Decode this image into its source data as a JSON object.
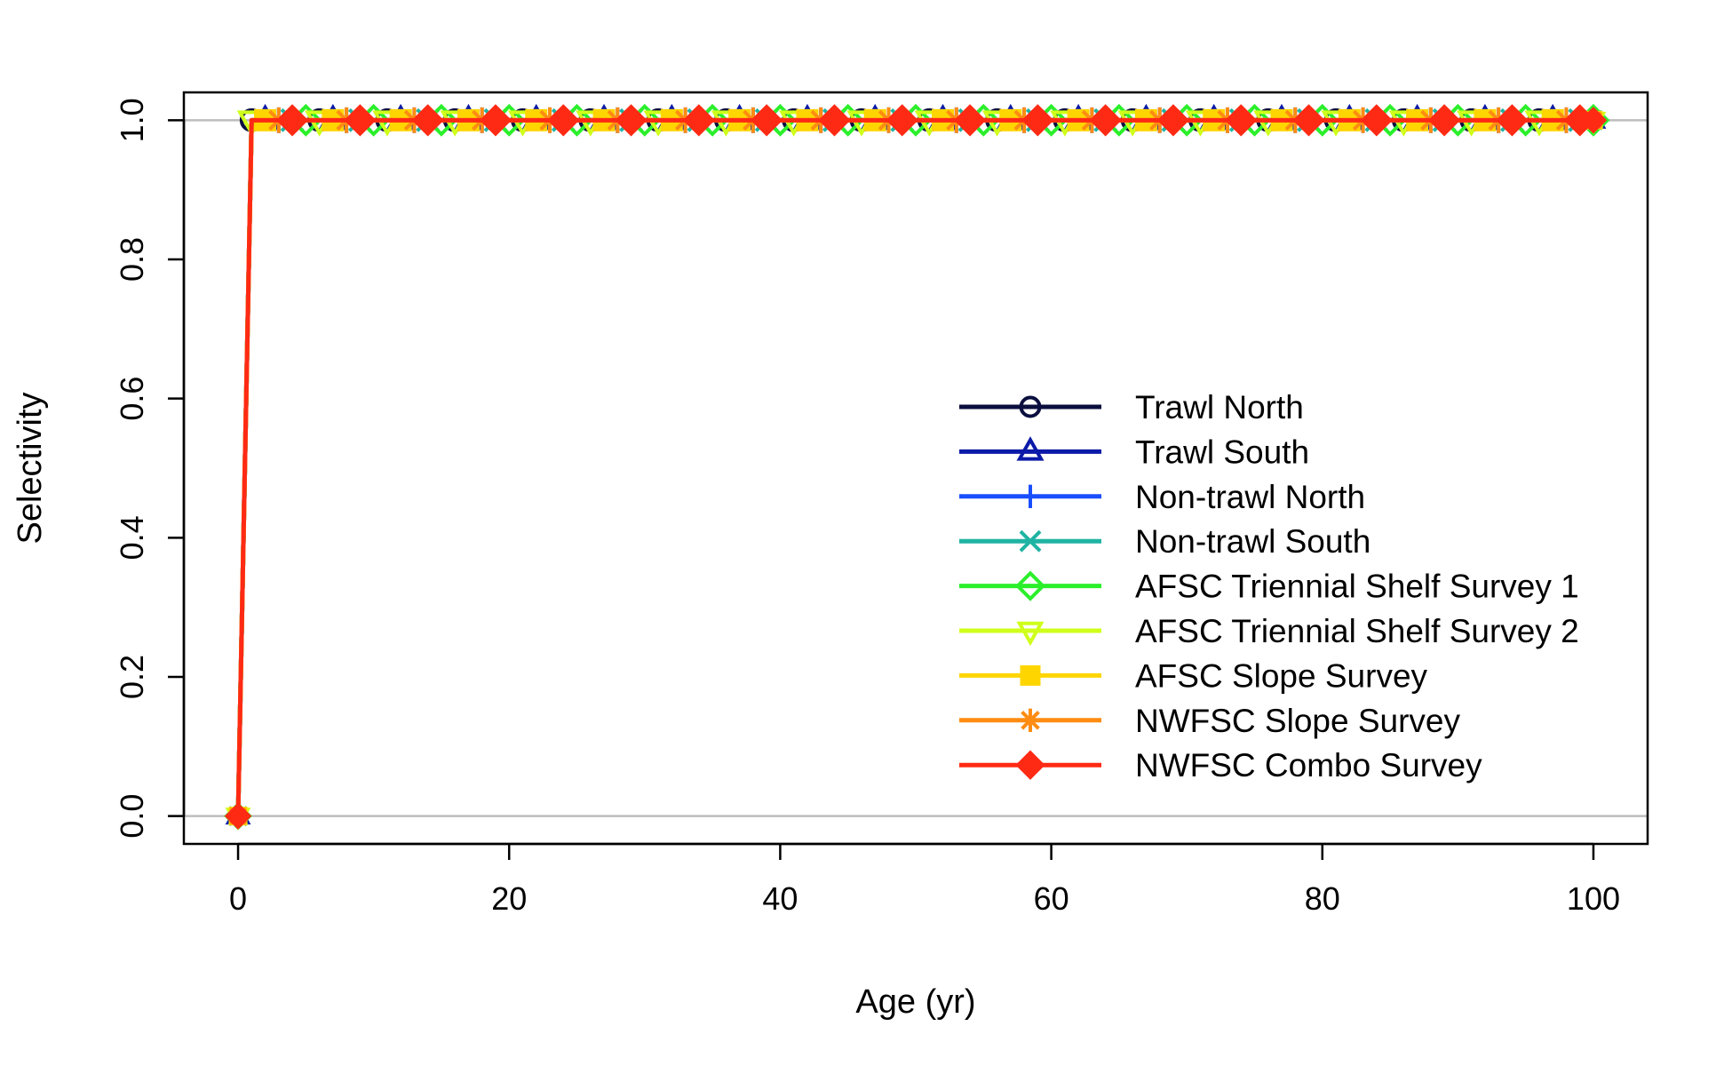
{
  "chart_data": {
    "type": "line",
    "title": "",
    "xlabel": "Age (yr)",
    "ylabel": "Selectivity",
    "xlim": [
      -4,
      104
    ],
    "ylim": [
      -0.04,
      1.04
    ],
    "x_ticks": [
      0,
      20,
      40,
      60,
      80,
      100
    ],
    "y_ticks": [
      0.0,
      0.2,
      0.4,
      0.6,
      0.8,
      1.0
    ],
    "x_tick_labels": [
      "0",
      "20",
      "40",
      "60",
      "80",
      "100"
    ],
    "y_tick_labels": [
      "0.0",
      "0.2",
      "0.4",
      "0.6",
      "0.8",
      "1.0"
    ],
    "reference_lines_y": [
      0,
      1
    ],
    "grid": false,
    "legend_position": "right",
    "x": {
      "from": 0,
      "to": 100,
      "step": 1
    },
    "note_values": "Each series is 0 at age 0 and 1 for ages 1 through 100",
    "series": [
      {
        "name": "Trawl North",
        "color": "#0b0f3f",
        "marker": "circle",
        "start": 0,
        "values_age0": 0,
        "values_age1_plus": 1
      },
      {
        "name": "Trawl South",
        "color": "#0b1aa8",
        "marker": "triangle-up",
        "start": 1,
        "values_age0": 0,
        "values_age1_plus": 1
      },
      {
        "name": "Non-trawl North",
        "color": "#1a4fff",
        "marker": "plus",
        "start": 2,
        "values_age0": 0,
        "values_age1_plus": 1
      },
      {
        "name": "Non-trawl South",
        "color": "#1fb3a3",
        "marker": "x",
        "start": 3,
        "values_age0": 0,
        "values_age1_plus": 1
      },
      {
        "name": "AFSC Triennial Shelf Survey 1",
        "color": "#2bef2b",
        "marker": "diamond-open",
        "start": 4,
        "values_age0": 0,
        "values_age1_plus": 1
      },
      {
        "name": "AFSC Triennial Shelf Survey 2",
        "color": "#cfff1a",
        "marker": "triangle-down",
        "start": 0,
        "values_age0": 0,
        "values_age1_plus": 1
      },
      {
        "name": "AFSC Slope Survey",
        "color": "#ffd500",
        "marker": "square",
        "start": 1,
        "values_age0": 0,
        "values_age1_plus": 1
      },
      {
        "name": "NWFSC Slope Survey",
        "color": "#ff8c12",
        "marker": "asterisk",
        "start": 2,
        "values_age0": 0,
        "values_age1_plus": 1
      },
      {
        "name": "NWFSC Combo Survey",
        "color": "#ff2a14",
        "marker": "diamond-filled",
        "start": 3,
        "values_age0": 0,
        "values_age1_plus": 1
      }
    ]
  }
}
